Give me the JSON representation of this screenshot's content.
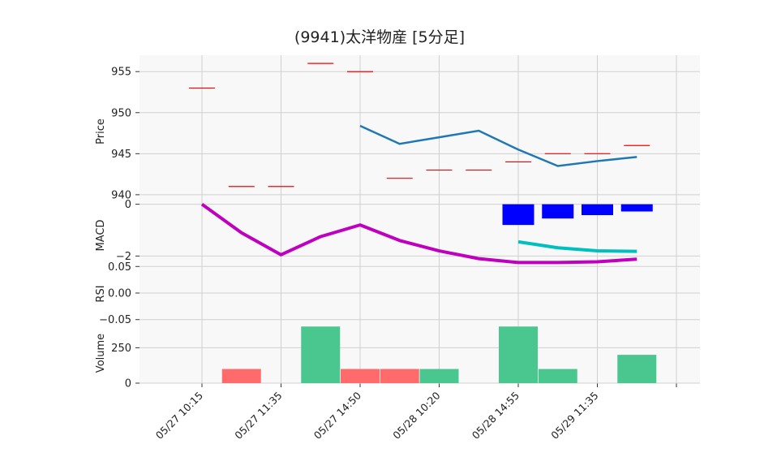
{
  "chart_data": {
    "title": "(9941)太洋物産  [5分足]",
    "type": "candlestick",
    "x_labels": [
      "05/27 10:15",
      "05/27 11:35",
      "05/27 14:50",
      "05/28 10:20",
      "05/28 14:55",
      "05/29 11:35",
      ""
    ],
    "panels": {
      "price": {
        "ylabel": "Price",
        "yticks": [
          940,
          945,
          950,
          955
        ],
        "ylim": [
          939,
          957
        ],
        "candles": [
          {
            "i": 0,
            "open": 953,
            "close": 953
          },
          {
            "i": 1,
            "open": 941,
            "close": 941
          },
          {
            "i": 2,
            "open": 941,
            "close": 941
          },
          {
            "i": 3,
            "open": 956,
            "close": 956
          },
          {
            "i": 4,
            "open": 955,
            "close": 955
          },
          {
            "i": 5,
            "open": 942,
            "close": 942
          },
          {
            "i": 6,
            "open": 943,
            "close": 943
          },
          {
            "i": 7,
            "open": 943,
            "close": 943
          },
          {
            "i": 8,
            "open": 944,
            "close": 944
          },
          {
            "i": 9,
            "open": 945,
            "close": 945
          },
          {
            "i": 10,
            "open": 945,
            "close": 945
          },
          {
            "i": 11,
            "open": 946,
            "close": 946
          }
        ],
        "ma": {
          "color": "#1f77b4",
          "points": [
            [
              4,
              948.4
            ],
            [
              5,
              946.2
            ],
            [
              6,
              947.0
            ],
            [
              7,
              947.8
            ],
            [
              8,
              945.5
            ],
            [
              9,
              943.5
            ],
            [
              10,
              944.1
            ],
            [
              11,
              944.6
            ]
          ]
        }
      },
      "macd": {
        "ylabel": "MACD",
        "yticks": [
          0,
          -2
        ],
        "ylim": [
          -2.3,
          0.05
        ],
        "macd_line": {
          "color": "#bf00bf",
          "points": [
            [
              0,
              0.0
            ],
            [
              1,
              -1.1
            ],
            [
              2,
              -1.95
            ],
            [
              3,
              -1.25
            ],
            [
              4,
              -0.8
            ],
            [
              5,
              -1.4
            ],
            [
              6,
              -1.8
            ],
            [
              7,
              -2.1
            ],
            [
              8,
              -2.25
            ],
            [
              9,
              -2.25
            ],
            [
              10,
              -2.22
            ],
            [
              11,
              -2.12
            ]
          ]
        },
        "signal_line": {
          "color": "#00bfbf",
          "points": [
            [
              8,
              -1.45
            ],
            [
              9,
              -1.68
            ],
            [
              10,
              -1.8
            ],
            [
              11,
              -1.82
            ]
          ]
        },
        "histogram": {
          "color": "#0000ff",
          "points": [
            [
              8,
              -0.8
            ],
            [
              9,
              -0.55
            ],
            [
              10,
              -0.42
            ],
            [
              11,
              -0.28
            ]
          ]
        }
      },
      "rsi": {
        "ylabel": "RSI",
        "yticks": [
          0.05,
          0.0,
          -0.05
        ],
        "ylim": [
          -0.055,
          0.055
        ]
      },
      "volume": {
        "ylabel": "Volume",
        "yticks": [
          0,
          250
        ],
        "ylim": [
          0,
          430
        ],
        "bars": [
          {
            "i": 1,
            "value": 100,
            "dir": "down"
          },
          {
            "i": 3,
            "value": 400,
            "dir": "up"
          },
          {
            "i": 4,
            "value": 100,
            "dir": "down"
          },
          {
            "i": 5,
            "value": 100,
            "dir": "down"
          },
          {
            "i": 6,
            "value": 100,
            "dir": "up"
          },
          {
            "i": 8,
            "value": 400,
            "dir": "up"
          },
          {
            "i": 9,
            "value": 100,
            "dir": "up"
          },
          {
            "i": 11,
            "value": 200,
            "dir": "up"
          }
        ]
      }
    },
    "colors": {
      "candle": "#ff0000",
      "volume_up": "#4ac78f",
      "volume_down": "#ff6b6b",
      "grid": "#d0d0d0",
      "panel_bg": "#f8f8f8"
    },
    "grid": true
  }
}
